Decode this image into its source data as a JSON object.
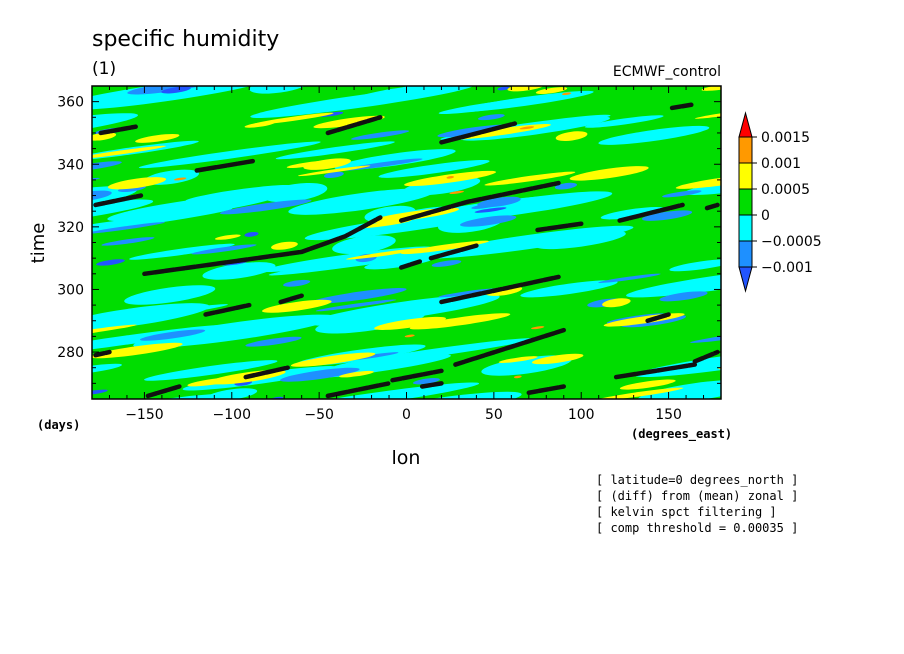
{
  "chart_data": {
    "type": "heatmap",
    "title": "specific humidity",
    "subtitle": "(1)",
    "dataset_label": "ECMWF_control",
    "xlabel": "lon",
    "x_units": "(degrees_east)",
    "y_units": "(days)",
    "ylabel": "time",
    "xlim": [
      -180,
      180
    ],
    "ylim": [
      265,
      365
    ],
    "x_ticks": [
      -150,
      -100,
      -50,
      0,
      50,
      100,
      150
    ],
    "y_ticks": [
      280,
      300,
      320,
      340,
      360
    ],
    "colorbar": {
      "levels": [
        "0.0015",
        "0.001",
        "0.0005",
        "0",
        "−0.0005",
        "−0.001"
      ],
      "colors": [
        "#ff0000",
        "#ff9900",
        "#ffff00",
        "#00dd00",
        "#00ffff",
        "#1e90ff",
        "#2255ff"
      ]
    },
    "notes": [
      "[ latitude=0 degrees_north ]",
      "[ (diff) from (mean) zonal ]",
      "[ kelvin spct filtering ]",
      "[ comp threshold = 0.00035 ]"
    ],
    "tracks": [
      {
        "lon": [
          -175,
          -155
        ],
        "time": [
          350,
          352
        ]
      },
      {
        "lon": [
          -45,
          -15
        ],
        "time": [
          350,
          355
        ]
      },
      {
        "lon": [
          20,
          62
        ],
        "time": [
          347,
          353
        ]
      },
      {
        "lon": [
          152,
          163
        ],
        "time": [
          358,
          359
        ]
      },
      {
        "lon": [
          -120,
          -88
        ],
        "time": [
          338,
          341
        ]
      },
      {
        "lon": [
          -178,
          -152
        ],
        "time": [
          327,
          330
        ]
      },
      {
        "lon": [
          -150,
          -60,
          -35,
          -15
        ],
        "time": [
          305,
          312,
          317,
          323
        ]
      },
      {
        "lon": [
          -3,
          35,
          87
        ],
        "time": [
          322,
          328,
          334
        ]
      },
      {
        "lon": [
          75,
          100
        ],
        "time": [
          319,
          321
        ]
      },
      {
        "lon": [
          122,
          158
        ],
        "time": [
          322,
          327
        ]
      },
      {
        "lon": [
          172,
          178
        ],
        "time": [
          326,
          327
        ]
      },
      {
        "lon": [
          -3,
          8
        ],
        "time": [
          307,
          309
        ]
      },
      {
        "lon": [
          14,
          40
        ],
        "time": [
          310,
          314
        ]
      },
      {
        "lon": [
          20,
          87
        ],
        "time": [
          296,
          304
        ]
      },
      {
        "lon": [
          -115,
          -90
        ],
        "time": [
          292,
          295
        ]
      },
      {
        "lon": [
          -72,
          -60
        ],
        "time": [
          296,
          298
        ]
      },
      {
        "lon": [
          -178,
          -170
        ],
        "time": [
          279,
          280
        ]
      },
      {
        "lon": [
          28,
          90
        ],
        "time": [
          276,
          287
        ]
      },
      {
        "lon": [
          -92,
          -68
        ],
        "time": [
          272,
          275
        ]
      },
      {
        "lon": [
          -8,
          20
        ],
        "time": [
          271,
          274
        ]
      },
      {
        "lon": [
          9,
          20
        ],
        "time": [
          269,
          270
        ]
      },
      {
        "lon": [
          -148,
          -130
        ],
        "time": [
          266,
          269
        ]
      },
      {
        "lon": [
          -45,
          -10
        ],
        "time": [
          266,
          270
        ]
      },
      {
        "lon": [
          70,
          90
        ],
        "time": [
          267,
          269
        ]
      },
      {
        "lon": [
          120,
          165
        ],
        "time": [
          272,
          276
        ]
      },
      {
        "lon": [
          165,
          178
        ],
        "time": [
          277,
          280
        ]
      },
      {
        "lon": [
          138,
          150
        ],
        "time": [
          290,
          292
        ]
      }
    ]
  }
}
